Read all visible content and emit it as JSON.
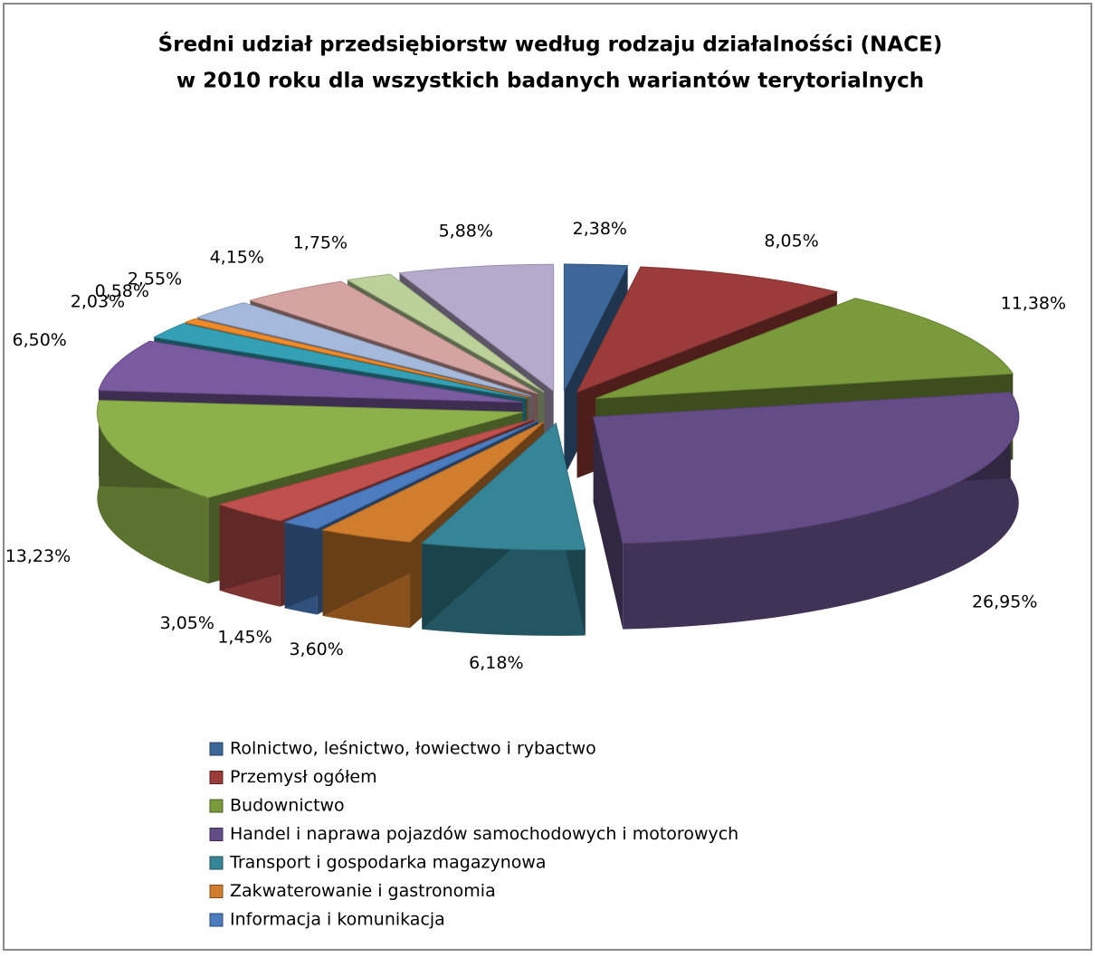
{
  "chart_data": {
    "type": "pie",
    "title": [
      "Średni udział przedsiębiorstw według rodzaju działalnośści (NACE)",
      "w 2010 roku dla wszystkich badanych wariantów terytorialnych"
    ],
    "categories": [
      "Rolnictwo, leśnictwo, łowiectwo i rybactwo",
      "Przemysł ogółem",
      "Budownictwo",
      "Handel i naprawa pojazdów samochodowych i motorowych",
      "Transport i gospodarka magazynowa",
      "Zakwaterowanie i gastronomia",
      "Informacja i komunikacja",
      null,
      null,
      null,
      null,
      null,
      null,
      null,
      null,
      null
    ],
    "values": [
      2.38,
      8.05,
      11.38,
      26.95,
      6.18,
      3.6,
      1.45,
      3.05,
      13.23,
      6.5,
      2.03,
      0.58,
      2.55,
      4.15,
      1.75,
      5.88
    ],
    "value_labels": [
      "2,38%",
      "8,05%",
      "11,38%",
      "26,95%",
      "6,18%",
      "3,60%",
      "1,45%",
      "3,05%",
      "13,23%",
      "6,50%",
      "2,03%",
      "0,58%",
      "2,55%",
      "4,15%",
      "1,75%",
      "5,88%"
    ],
    "colors": [
      "#3d6799",
      "#9b3c3a",
      "#7a9a3c",
      "#644d86",
      "#368596",
      "#d17d2e",
      "#4a7cbf",
      "#c0504d",
      "#8db14a",
      "#7a5aa0",
      "#33a0b5",
      "#f08a2a",
      "#a5b9dc",
      "#d5a3a2",
      "#bcd09a",
      "#b6aacc"
    ]
  }
}
